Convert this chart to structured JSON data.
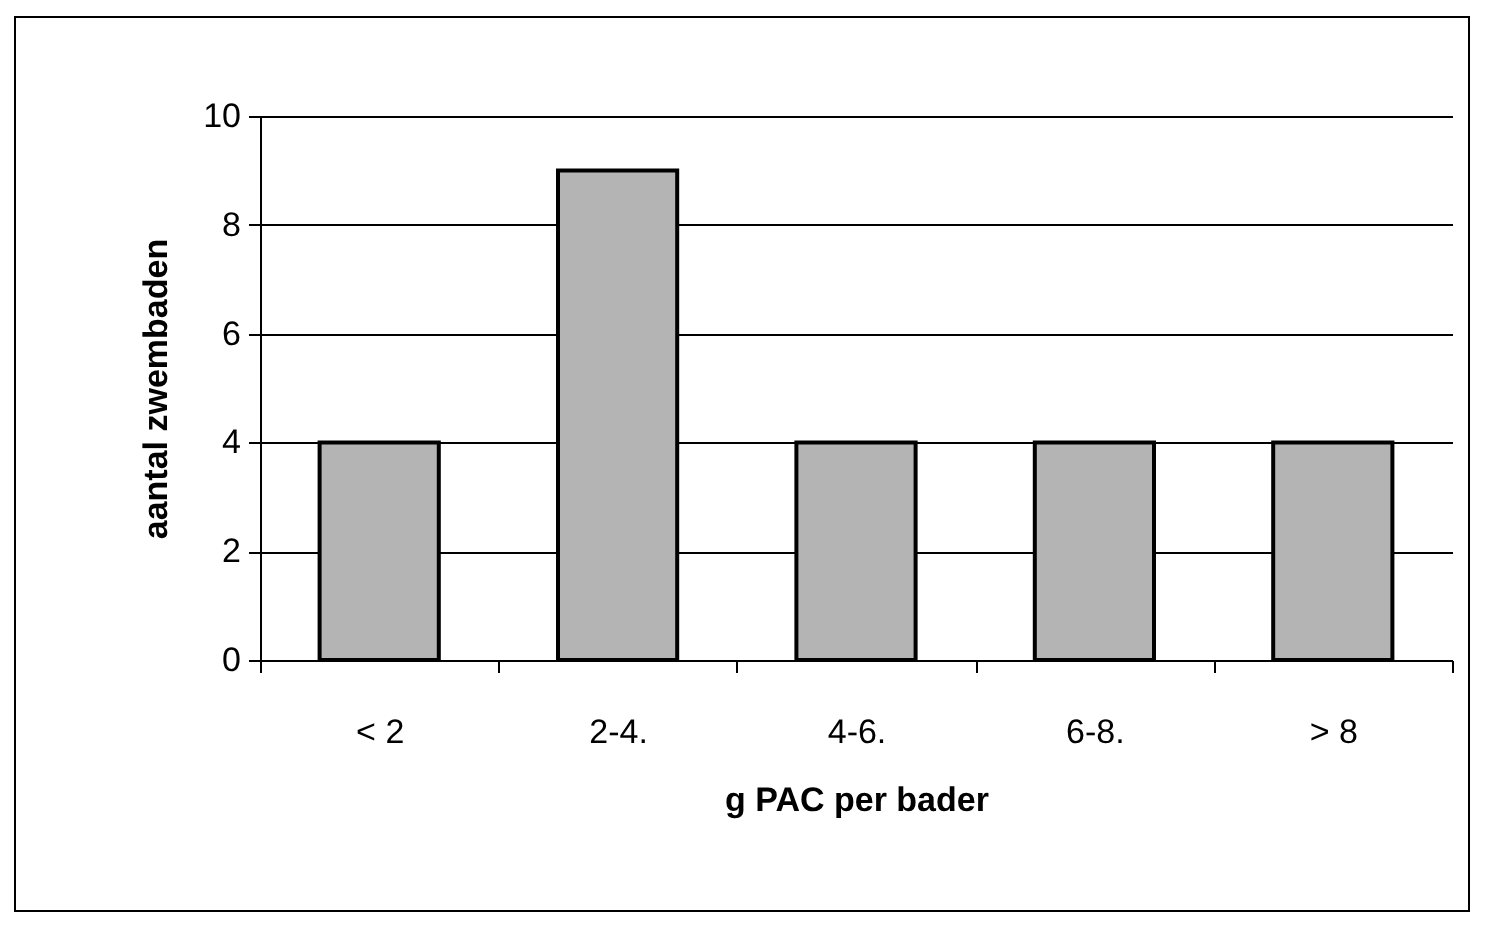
{
  "chart_data": {
    "type": "bar",
    "xlabel": "g PAC per bader",
    "ylabel": "aantal zwembaden",
    "categories": [
      "< 2",
      "2-4.",
      "4-6.",
      "6-8.",
      "> 8"
    ],
    "values": [
      4,
      9,
      4,
      4,
      4
    ],
    "color": "#b4b4b4",
    "ylim": [
      0,
      10
    ],
    "yticks": [
      0,
      2,
      4,
      6,
      8,
      10
    ],
    "grid": "y",
    "legend": false
  }
}
